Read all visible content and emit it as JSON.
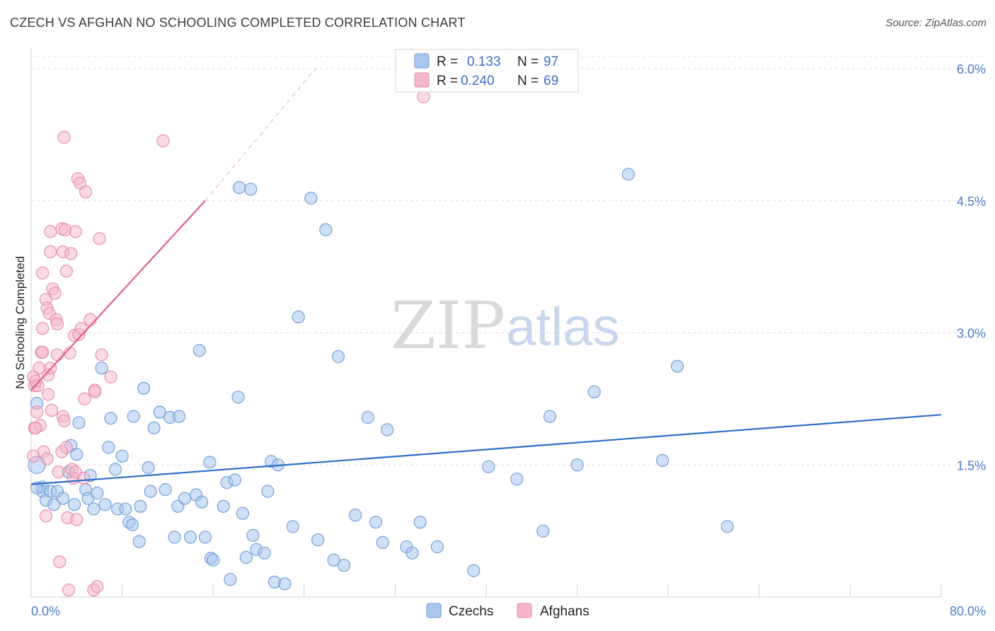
{
  "title": "CZECH VS AFGHAN NO SCHOOLING COMPLETED CORRELATION CHART",
  "source": "Source: ZipAtlas.com",
  "watermark": {
    "zip": "ZIP",
    "atlas": "atlas"
  },
  "legend": {
    "r_label": "R =",
    "n_label": "N =",
    "items": [
      {
        "r": "0.133",
        "n": "97"
      },
      {
        "r": "0.240",
        "n": "69"
      }
    ]
  },
  "colors": {
    "czech_fill": "#a9c6ee",
    "czech_stroke": "#6d9ad6",
    "czech_line": "#2f6ec8",
    "afghan_fill": "#f5b6c9",
    "afghan_stroke": "#e58aa8",
    "afghan_line": "#e0608a"
  },
  "chart_data": {
    "type": "scatter",
    "ylabel": "No Schooling Completed",
    "xlim": [
      0,
      80
    ],
    "ylim": [
      0,
      6.25
    ],
    "x_tick_labels": [
      "0.0%",
      "80.0%"
    ],
    "y_ticks": [
      {
        "value": 1.5,
        "label": "1.5%"
      },
      {
        "value": 3.0,
        "label": "3.0%"
      },
      {
        "value": 4.5,
        "label": "4.5%"
      },
      {
        "value": 6.0,
        "label": "6.0%"
      }
    ],
    "grid": "dashed horizontal",
    "legend_position": "top-center",
    "series": [
      {
        "name": "Czechs",
        "trend": {
          "x": [
            0,
            80
          ],
          "y": [
            1.28,
            2.07
          ],
          "style": "solid"
        },
        "points": [
          [
            0.5,
            1.5
          ],
          [
            0.5,
            2.2
          ],
          [
            1,
            1.25
          ],
          [
            1,
            1.2
          ],
          [
            1.3,
            1.1
          ],
          [
            1.7,
            1.2
          ],
          [
            2,
            1.05
          ],
          [
            2.3,
            1.2
          ],
          [
            2.8,
            1.12
          ],
          [
            3.3,
            1.42
          ],
          [
            3.5,
            1.72
          ],
          [
            3.8,
            1.05
          ],
          [
            4,
            1.62
          ],
          [
            4.2,
            1.98
          ],
          [
            4.8,
            1.22
          ],
          [
            5,
            1.12
          ],
          [
            5.2,
            1.38
          ],
          [
            5.5,
            1.0
          ],
          [
            5.8,
            1.18
          ],
          [
            6.2,
            2.6
          ],
          [
            6.5,
            1.05
          ],
          [
            6.8,
            1.7
          ],
          [
            7,
            2.03
          ],
          [
            7.4,
            1.45
          ],
          [
            7.6,
            1.0
          ],
          [
            8,
            1.6
          ],
          [
            8.3,
            1.0
          ],
          [
            8.6,
            0.85
          ],
          [
            8.9,
            0.82
          ],
          [
            9,
            2.05
          ],
          [
            9.5,
            0.63
          ],
          [
            9.6,
            1.03
          ],
          [
            9.9,
            2.37
          ],
          [
            10.3,
            1.47
          ],
          [
            10.5,
            1.2
          ],
          [
            10.8,
            1.92
          ],
          [
            11.3,
            2.1
          ],
          [
            11.8,
            1.22
          ],
          [
            12.2,
            2.04
          ],
          [
            12.6,
            0.68
          ],
          [
            12.9,
            1.03
          ],
          [
            13,
            2.05
          ],
          [
            13.5,
            1.12
          ],
          [
            14,
            0.68
          ],
          [
            14.5,
            1.16
          ],
          [
            14.8,
            2.8
          ],
          [
            15,
            1.08
          ],
          [
            15.3,
            0.68
          ],
          [
            15.7,
            1.53
          ],
          [
            15.8,
            0.44
          ],
          [
            16,
            0.42
          ],
          [
            16.9,
            1.03
          ],
          [
            17.2,
            1.3
          ],
          [
            17.5,
            0.2
          ],
          [
            17.9,
            1.33
          ],
          [
            18.2,
            2.27
          ],
          [
            18.3,
            4.65
          ],
          [
            18.6,
            0.95
          ],
          [
            18.9,
            0.45
          ],
          [
            19.3,
            4.63
          ],
          [
            19.5,
            0.7
          ],
          [
            19.8,
            0.54
          ],
          [
            20.5,
            0.5
          ],
          [
            20.8,
            1.2
          ],
          [
            21.1,
            1.54
          ],
          [
            21.4,
            0.17
          ],
          [
            21.7,
            1.5
          ],
          [
            22.3,
            0.15
          ],
          [
            23,
            0.8
          ],
          [
            23.5,
            3.18
          ],
          [
            24.6,
            4.53
          ],
          [
            25.2,
            0.65
          ],
          [
            25.9,
            4.17
          ],
          [
            26.6,
            0.42
          ],
          [
            27,
            2.73
          ],
          [
            27.5,
            0.36
          ],
          [
            28.5,
            0.93
          ],
          [
            29.6,
            2.04
          ],
          [
            30.3,
            0.85
          ],
          [
            30.9,
            0.62
          ],
          [
            31.3,
            1.9
          ],
          [
            33,
            0.57
          ],
          [
            33.5,
            0.5
          ],
          [
            34.2,
            0.85
          ],
          [
            35.7,
            0.57
          ],
          [
            38.9,
            0.3
          ],
          [
            40.2,
            1.48
          ],
          [
            42.7,
            1.34
          ],
          [
            45,
            0.75
          ],
          [
            45.6,
            2.05
          ],
          [
            48,
            1.5
          ],
          [
            49.5,
            2.33
          ],
          [
            52.5,
            4.8
          ],
          [
            55.5,
            1.55
          ],
          [
            56.8,
            2.62
          ],
          [
            61.2,
            0.8
          ],
          [
            0.5,
            1.24
          ]
        ]
      },
      {
        "name": "Afghans",
        "trend": {
          "x": [
            0,
            15.3
          ],
          "y": [
            2.35,
            4.5
          ],
          "dashed_to": [
            25,
            6.0
          ],
          "style": "solid"
        },
        "points": [
          [
            0.2,
            2.5
          ],
          [
            0.3,
            2.4
          ],
          [
            0.3,
            1.92
          ],
          [
            0.5,
            2.1
          ],
          [
            0.6,
            2.4
          ],
          [
            0.7,
            2.6
          ],
          [
            0.8,
            1.95
          ],
          [
            0.9,
            2.78
          ],
          [
            1,
            2.78
          ],
          [
            1,
            3.68
          ],
          [
            1,
            3.05
          ],
          [
            1.1,
            1.65
          ],
          [
            1.3,
            3.38
          ],
          [
            1.4,
            3.28
          ],
          [
            1.4,
            1.57
          ],
          [
            1.5,
            2.52
          ],
          [
            1.5,
            2.3
          ],
          [
            1.6,
            3.22
          ],
          [
            1.7,
            3.92
          ],
          [
            1.7,
            4.15
          ],
          [
            1.7,
            2.6
          ],
          [
            1.8,
            2.12
          ],
          [
            1.9,
            3.5
          ],
          [
            2.1,
            3.45
          ],
          [
            2.2,
            3.15
          ],
          [
            2.3,
            3.1
          ],
          [
            2.3,
            2.75
          ],
          [
            2.4,
            1.42
          ],
          [
            2.5,
            0.4
          ],
          [
            2.7,
            1.65
          ],
          [
            2.7,
            4.18
          ],
          [
            2.8,
            2.05
          ],
          [
            2.8,
            3.92
          ],
          [
            2.9,
            2.0
          ],
          [
            3,
            4.17
          ],
          [
            3.1,
            1.7
          ],
          [
            3.1,
            3.7
          ],
          [
            3.2,
            0.9
          ],
          [
            3.4,
            2.77
          ],
          [
            3.5,
            3.9
          ],
          [
            3.6,
            1.45
          ],
          [
            3.7,
            1.35
          ],
          [
            3.8,
            2.97
          ],
          [
            3.9,
            4.15
          ],
          [
            3.9,
            1.42
          ],
          [
            4,
            0.88
          ],
          [
            4.1,
            4.75
          ],
          [
            4.2,
            2.98
          ],
          [
            4.3,
            4.7
          ],
          [
            4.4,
            3.05
          ],
          [
            4.6,
            1.35
          ],
          [
            4.7,
            2.25
          ],
          [
            4.8,
            4.6
          ],
          [
            5.2,
            3.15
          ],
          [
            5.6,
            2.35
          ],
          [
            5.5,
            0.08
          ],
          [
            5.8,
            0.12
          ],
          [
            5.6,
            2.33
          ],
          [
            6.0,
            4.07
          ],
          [
            6.2,
            2.75
          ],
          [
            7.0,
            2.5
          ],
          [
            11.6,
            5.18
          ],
          [
            0.4,
            1.92
          ],
          [
            0.4,
            2.45
          ],
          [
            2.9,
            5.22
          ],
          [
            0.2,
            1.6
          ],
          [
            3.3,
            0.08
          ],
          [
            34.5,
            5.68
          ],
          [
            1.3,
            0.92
          ]
        ]
      }
    ]
  }
}
